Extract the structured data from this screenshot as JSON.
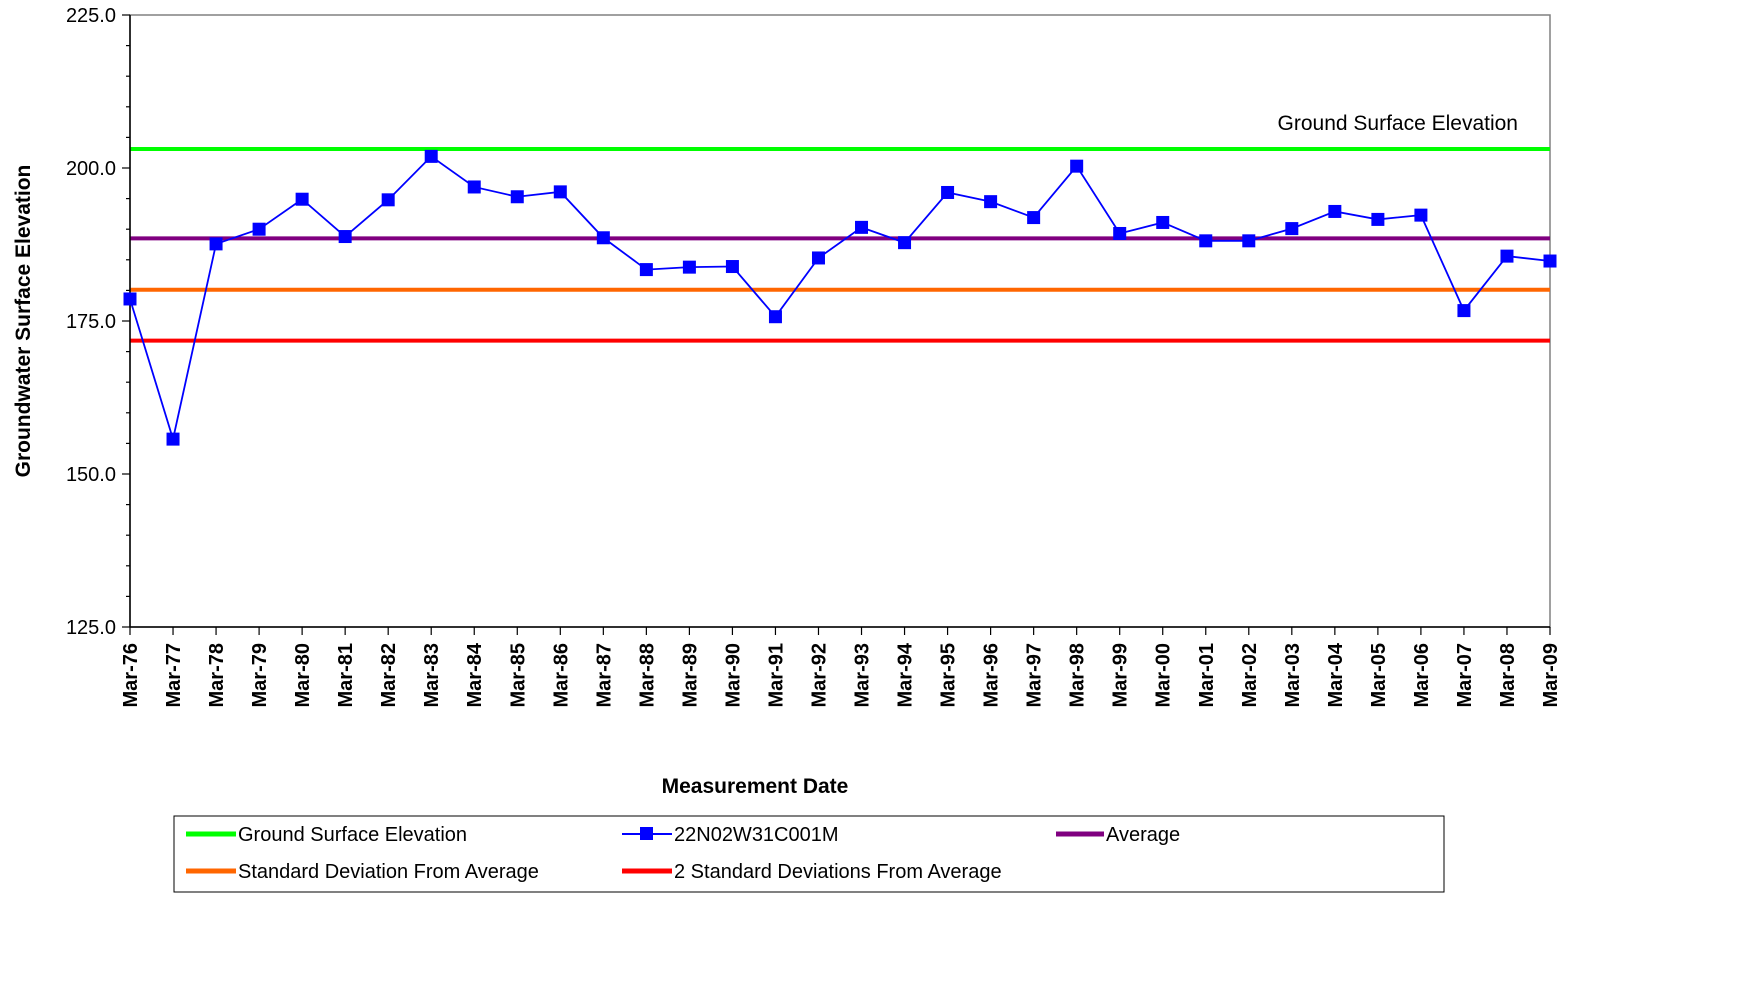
{
  "chart_data": {
    "type": "line",
    "xlabel": "Measurement Date",
    "ylabel": "Groundwater Surface Elevation",
    "ylim": [
      125.0,
      225.0
    ],
    "y_ticks": [
      "125.0",
      "150.0",
      "175.0",
      "200.0",
      "225.0"
    ],
    "grid": false,
    "legend_position": "bottom",
    "categories": [
      "Mar-76",
      "Mar-77",
      "Mar-78",
      "Mar-79",
      "Mar-80",
      "Mar-81",
      "Mar-82",
      "Mar-83",
      "Mar-84",
      "Mar-85",
      "Mar-86",
      "Mar-87",
      "Mar-88",
      "Mar-89",
      "Mar-90",
      "Mar-91",
      "Mar-92",
      "Mar-93",
      "Mar-94",
      "Mar-95",
      "Mar-96",
      "Mar-97",
      "Mar-98",
      "Mar-99",
      "Mar-00",
      "Mar-01",
      "Mar-02",
      "Mar-03",
      "Mar-04",
      "Mar-05",
      "Mar-06",
      "Mar-07",
      "Mar-08",
      "Mar-09"
    ],
    "series": [
      {
        "name": "22N02W31C001M",
        "color": "#0000ff",
        "marker": "square",
        "values": [
          178.6,
          155.7,
          187.6,
          190.0,
          194.9,
          188.8,
          194.8,
          201.9,
          196.9,
          195.3,
          196.1,
          188.6,
          183.4,
          183.8,
          183.9,
          175.7,
          185.3,
          190.3,
          187.8,
          196.0,
          194.5,
          191.9,
          200.3,
          189.3,
          191.1,
          188.1,
          188.1,
          190.1,
          192.9,
          191.6,
          192.3,
          176.7,
          185.6,
          184.8
        ]
      }
    ],
    "reference_lines": [
      {
        "name": "Ground Surface Elevation",
        "value": 203.1,
        "color": "#00ff00"
      },
      {
        "name": "Average",
        "value": 188.5,
        "color": "#800080"
      },
      {
        "name": "Standard Deviation From Average",
        "value": 180.1,
        "color": "#ff6600"
      },
      {
        "name": "2 Standard Deviations From Average",
        "value": 171.8,
        "color": "#ff0000"
      }
    ],
    "annotations": [
      {
        "text": "Ground Surface Elevation",
        "attached_to": "Ground Surface Elevation"
      }
    ],
    "legend": [
      {
        "label": "Ground Surface Elevation",
        "color": "#00ff00",
        "marker": "none"
      },
      {
        "label": "22N02W31C001M",
        "color": "#0000ff",
        "marker": "square"
      },
      {
        "label": "Average",
        "color": "#800080",
        "marker": "none"
      },
      {
        "label": "Standard Deviation From Average",
        "color": "#ff6600",
        "marker": "none"
      },
      {
        "label": "2 Standard Deviations From Average",
        "color": "#ff0000",
        "marker": "none"
      }
    ]
  }
}
